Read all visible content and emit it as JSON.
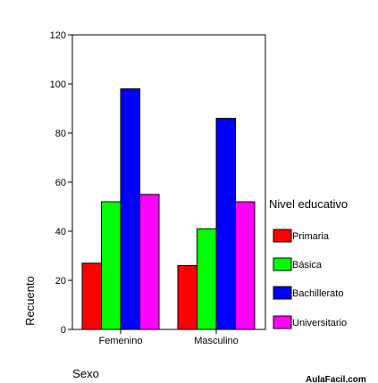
{
  "chart_data": {
    "type": "bar",
    "categories": [
      "Femenino",
      "Masculino"
    ],
    "series": [
      {
        "name": "Primaria",
        "color": "#ff0000",
        "values": [
          27,
          26
        ]
      },
      {
        "name": "Básica",
        "color": "#00ff00",
        "values": [
          52,
          41
        ]
      },
      {
        "name": "Bachillerato",
        "color": "#0000ff",
        "values": [
          98,
          86
        ]
      },
      {
        "name": "Universitario",
        "color": "#ff00ff",
        "values": [
          55,
          52
        ]
      }
    ],
    "xlabel": "Sexo",
    "ylabel": "Recuento",
    "ylim": [
      0,
      120
    ],
    "yticks": [
      "0",
      "20",
      "40",
      "60",
      "80",
      "100",
      "120"
    ],
    "legend_title": "Nivel educativo",
    "legend_position": "right",
    "grid": false
  },
  "watermark": "AulaFacil.com"
}
